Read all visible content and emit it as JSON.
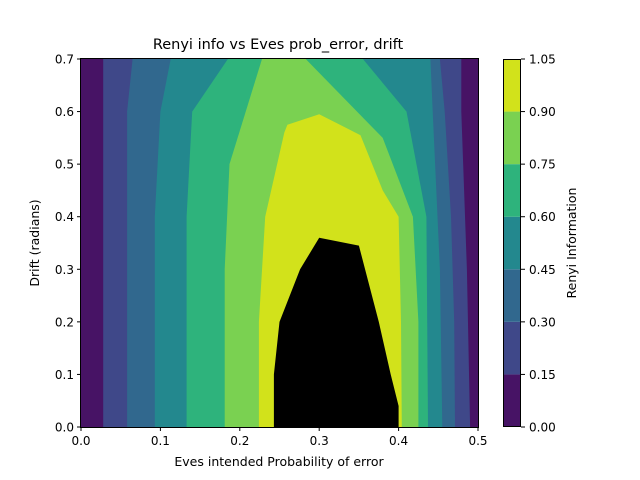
{
  "chart_data": {
    "type": "contourf",
    "title": "Renyi info vs Eves prob_error, drift",
    "xlabel": "Eves intended Probability of error",
    "ylabel": "Drift (radians)",
    "xlim": [
      0.0,
      0.5
    ],
    "ylim": [
      0.0,
      0.7
    ],
    "x_ticks": [
      "0.0",
      "0.1",
      "0.2",
      "0.3",
      "0.4",
      "0.5"
    ],
    "y_ticks": [
      "0.0",
      "0.1",
      "0.2",
      "0.3",
      "0.4",
      "0.5",
      "0.6",
      "0.7"
    ],
    "grid": false,
    "colorbar": {
      "label": "Renyi Information",
      "levels": [
        0.0,
        0.15,
        0.3,
        0.45,
        0.6,
        0.75,
        0.9,
        1.05
      ],
      "tick_labels": [
        "0.00",
        "0.15",
        "0.30",
        "0.45",
        "0.60",
        "0.75",
        "0.90",
        "1.05"
      ],
      "colors": [
        "#471365",
        "#3f4889",
        "#31688e",
        "#23888e",
        "#2eb37c",
        "#7ad151",
        "#d2e21b"
      ],
      "position": "right"
    },
    "regions": [
      {
        "level": 1,
        "points": [
          [
            0.028,
            0
          ],
          [
            0.028,
            0.7
          ],
          [
            0.479,
            0.7
          ],
          [
            0.479,
            0.6
          ],
          [
            0.486,
            0.3
          ],
          [
            0.49,
            0
          ],
          [
            0.5,
            0
          ]
        ]
      },
      {
        "level": 2,
        "points": [
          [
            0.058,
            0
          ],
          [
            0.058,
            0.6
          ],
          [
            0.065,
            0.7
          ],
          [
            0.452,
            0.7
          ],
          [
            0.458,
            0.6
          ],
          [
            0.466,
            0.4
          ],
          [
            0.47,
            0.2
          ],
          [
            0.471,
            0
          ]
        ]
      },
      {
        "level": 3,
        "points": [
          [
            0.093,
            0
          ],
          [
            0.093,
            0.4
          ],
          [
            0.1,
            0.6
          ],
          [
            0.113,
            0.7
          ],
          [
            0.44,
            0.7
          ],
          [
            0.443,
            0.6
          ],
          [
            0.452,
            0.3
          ],
          [
            0.455,
            0
          ]
        ]
      },
      {
        "level": 4,
        "points": [
          [
            0.133,
            0
          ],
          [
            0.133,
            0.4
          ],
          [
            0.14,
            0.6
          ],
          [
            0.185,
            0.7
          ],
          [
            0.355,
            0.7
          ],
          [
            0.41,
            0.6
          ],
          [
            0.435,
            0.4
          ],
          [
            0.437,
            0
          ]
        ]
      },
      {
        "level": 5,
        "points": [
          [
            0.181,
            0
          ],
          [
            0.181,
            0.3
          ],
          [
            0.187,
            0.5
          ],
          [
            0.228,
            0.7
          ],
          [
            0.283,
            0.7
          ],
          [
            0.38,
            0.55
          ],
          [
            0.418,
            0.4
          ],
          [
            0.425,
            0.2
          ],
          [
            0.425,
            0
          ]
        ]
      },
      {
        "level": 6,
        "points": [
          [
            0.224,
            0
          ],
          [
            0.224,
            0.2
          ],
          [
            0.232,
            0.4
          ],
          [
            0.256,
            0.56
          ],
          [
            0.26,
            0.575
          ],
          [
            0.3,
            0.595
          ],
          [
            0.352,
            0.555
          ],
          [
            0.38,
            0.45
          ],
          [
            0.4,
            0.4
          ],
          [
            0.403,
            0.2
          ],
          [
            0.404,
            0
          ]
        ]
      },
      {
        "level": 7,
        "points": [
          [
            0.243,
            0
          ],
          [
            0.243,
            0.1
          ],
          [
            0.25,
            0.2
          ],
          [
            0.276,
            0.3
          ],
          [
            0.3,
            0.36
          ],
          [
            0.35,
            0.345
          ],
          [
            0.375,
            0.2
          ],
          [
            0.39,
            0.1
          ],
          [
            0.4,
            0.04
          ],
          [
            0.4,
            0
          ]
        ]
      }
    ]
  }
}
